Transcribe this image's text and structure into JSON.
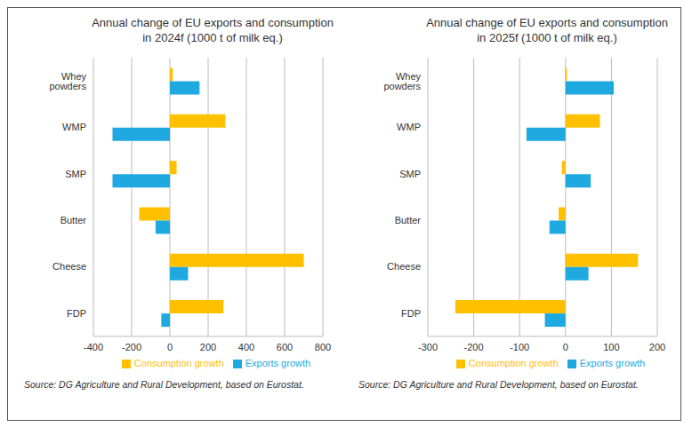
{
  "chart_data": [
    {
      "type": "bar",
      "title": "Annual change of EU exports and consumption in 2024f (1000 t of milk eq.)",
      "orientation": "horizontal",
      "categories": [
        "Whey powders",
        "WMP",
        "SMP",
        "Butter",
        "Cheese",
        "FDP"
      ],
      "series": [
        {
          "name": "Consumption growth",
          "color": "#FFC000",
          "values": [
            15,
            290,
            35,
            -160,
            700,
            280
          ]
        },
        {
          "name": "Exports growth",
          "color": "#1FA9E1",
          "values": [
            155,
            -300,
            -300,
            -75,
            95,
            -45
          ]
        }
      ],
      "xlim": [
        -400,
        800
      ],
      "xticks": [
        -400,
        -200,
        0,
        200,
        400,
        600,
        800
      ],
      "grid": true,
      "legend": "bottom",
      "annotations": [
        "Source: DG Agriculture and Rural Development, based on Eurostat."
      ]
    },
    {
      "type": "bar",
      "title": "Annual change of EU exports and consumption in 2025f (1000 t of milk eq.)",
      "orientation": "horizontal",
      "categories": [
        "Whey powders",
        "WMP",
        "SMP",
        "Butter",
        "Cheese",
        "FDP"
      ],
      "series": [
        {
          "name": "Consumption growth",
          "color": "#FFC000",
          "values": [
            3,
            75,
            -8,
            -15,
            158,
            -240
          ]
        },
        {
          "name": "Exports growth",
          "color": "#1FA9E1",
          "values": [
            105,
            -85,
            55,
            -35,
            50,
            -45
          ]
        }
      ],
      "xlim": [
        -300,
        200
      ],
      "xticks": [
        -300,
        -200,
        -100,
        0,
        100,
        200
      ],
      "grid": true,
      "legend": "bottom",
      "annotations": [
        "Source: DG Agriculture and Rural Development, based on Eurostat."
      ]
    }
  ]
}
